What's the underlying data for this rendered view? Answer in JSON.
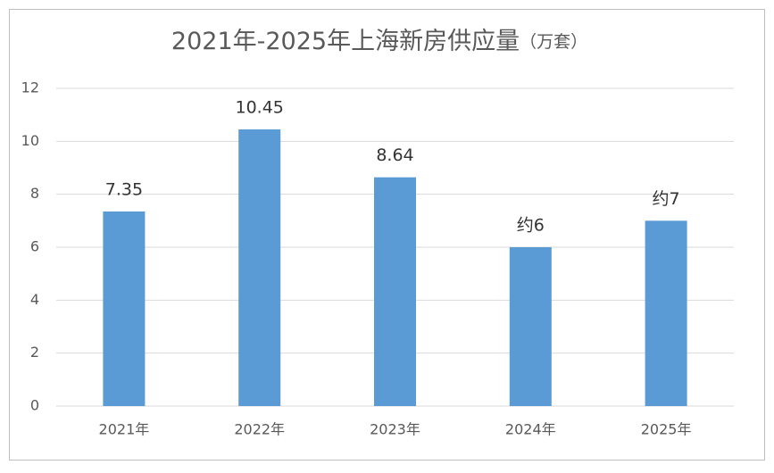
{
  "chart_data": {
    "type": "bar",
    "title": "2021年-2025年上海新房供应量",
    "subtitle": "（万套）",
    "categories": [
      "2021年",
      "2022年",
      "2023年",
      "2024年",
      "2025年"
    ],
    "values": [
      7.35,
      10.45,
      8.64,
      6,
      7
    ],
    "value_labels": [
      "7.35",
      "10.45",
      "8.64",
      "约6",
      "约7"
    ],
    "color": "#5b9bd5",
    "ylim": [
      0,
      12
    ],
    "yticks": [
      0,
      2,
      4,
      6,
      8,
      10,
      12
    ],
    "grid": true
  }
}
